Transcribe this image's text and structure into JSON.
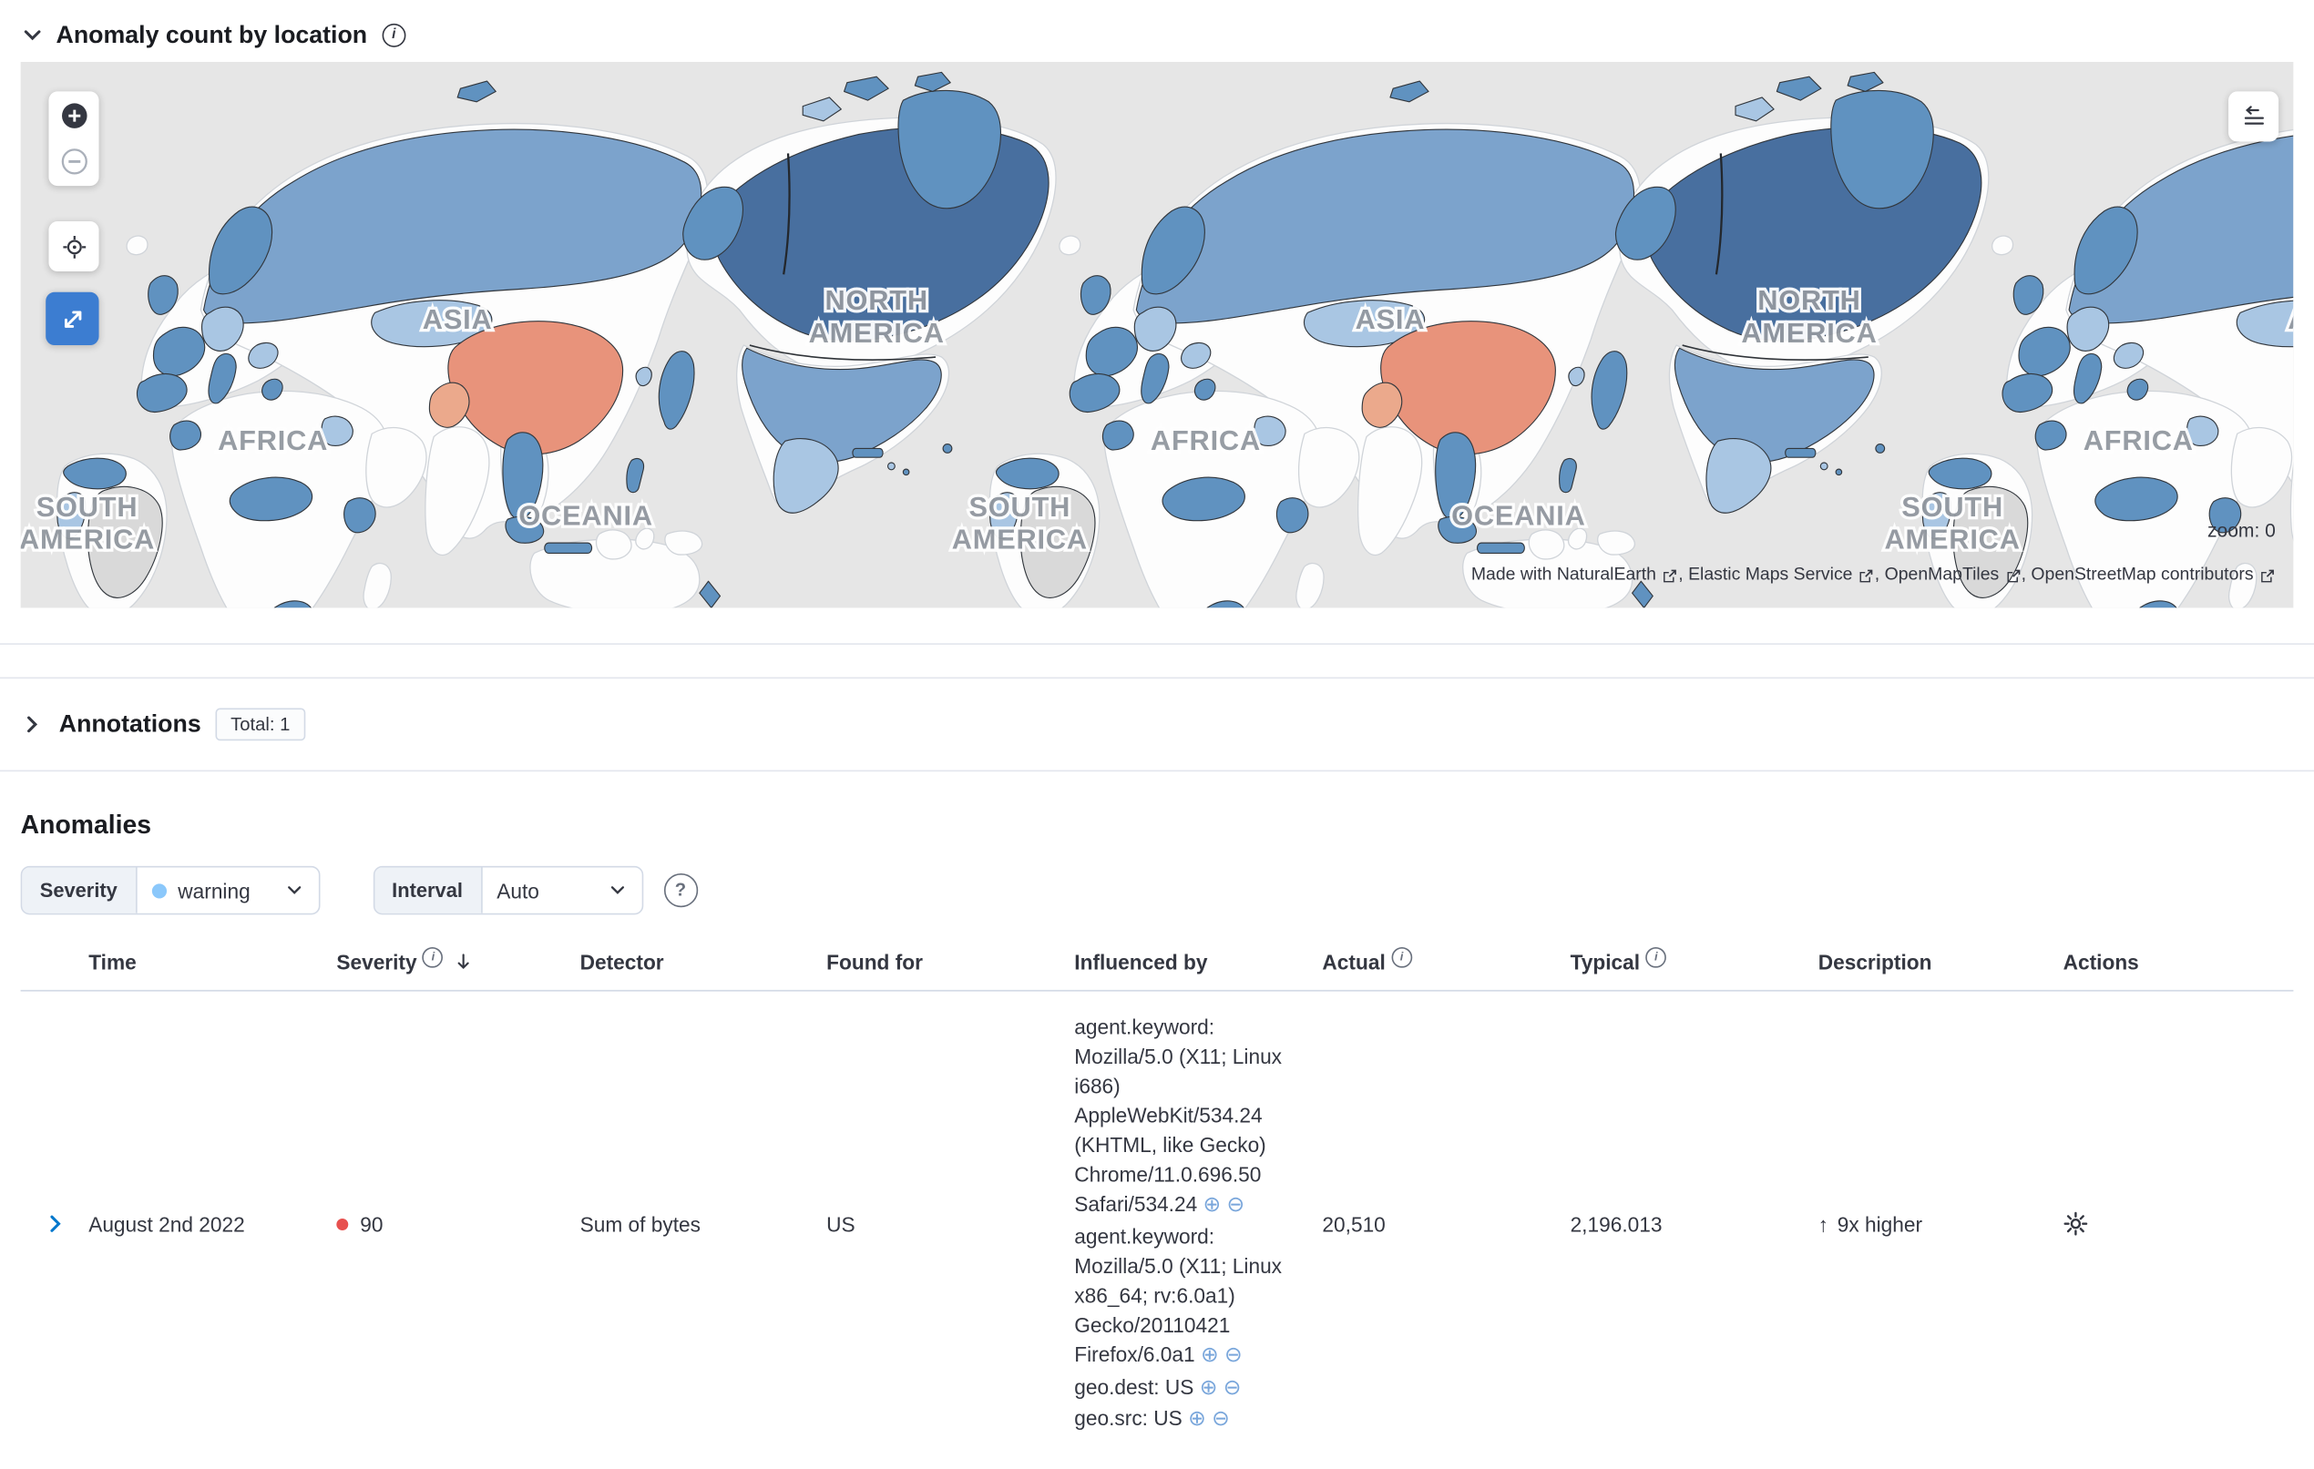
{
  "map_panel": {
    "title": "Anomaly count by location",
    "zoom_label": "zoom: 0",
    "attribution_prefix": "Made with",
    "attribution_links": [
      "NaturalEarth",
      "Elastic Maps Service",
      "OpenMapTiles",
      "OpenStreetMap contributors"
    ],
    "map_labels": {
      "asia": "ASIA",
      "north": "NORTH",
      "america": "AMERICA",
      "africa": "AFRICA",
      "oceania": "OCEANIA",
      "south": "SOUTH"
    }
  },
  "annotations_panel": {
    "title": "Annotations",
    "total_badge": "Total: 1"
  },
  "anomalies_panel": {
    "title": "Anomalies",
    "severity_label": "Severity",
    "severity_value": "warning",
    "interval_label": "Interval",
    "interval_value": "Auto",
    "columns": {
      "time": "Time",
      "severity": "Severity",
      "detector": "Detector",
      "found_for": "Found for",
      "influenced_by": "Influenced by",
      "actual": "Actual",
      "typical": "Typical",
      "description": "Description",
      "actions": "Actions"
    },
    "row": {
      "time": "August 2nd 2022",
      "severity": "90",
      "detector": "Sum of bytes",
      "found_for": "US",
      "influencers": [
        "agent.keyword: Mozilla/5.0 (X11; Linux i686) AppleWebKit/534.24 (KHTML, like Gecko) Chrome/11.0.696.50 Safari/534.24",
        "agent.keyword: Mozilla/5.0 (X11; Linux x86_64; rv:6.0a1) Gecko/20110421 Firefox/6.0a1",
        "geo.dest: US",
        "geo.src: US"
      ],
      "actual": "20,510",
      "typical": "2,196.013",
      "description": "9x higher"
    }
  },
  "colors": {
    "map_ocean": "#e6e6e6",
    "country_low": "#a9c6e3",
    "country_mid": "#7ca3cc",
    "country_blue": "#6092c0",
    "country_dark": "#486f9f",
    "country_hot": "#e8937b",
    "no_data": "#d9d9d9",
    "severity_critical": "#e7514f",
    "warning_dot": "#8bc8fb",
    "accent_blue": "#0077cc"
  }
}
